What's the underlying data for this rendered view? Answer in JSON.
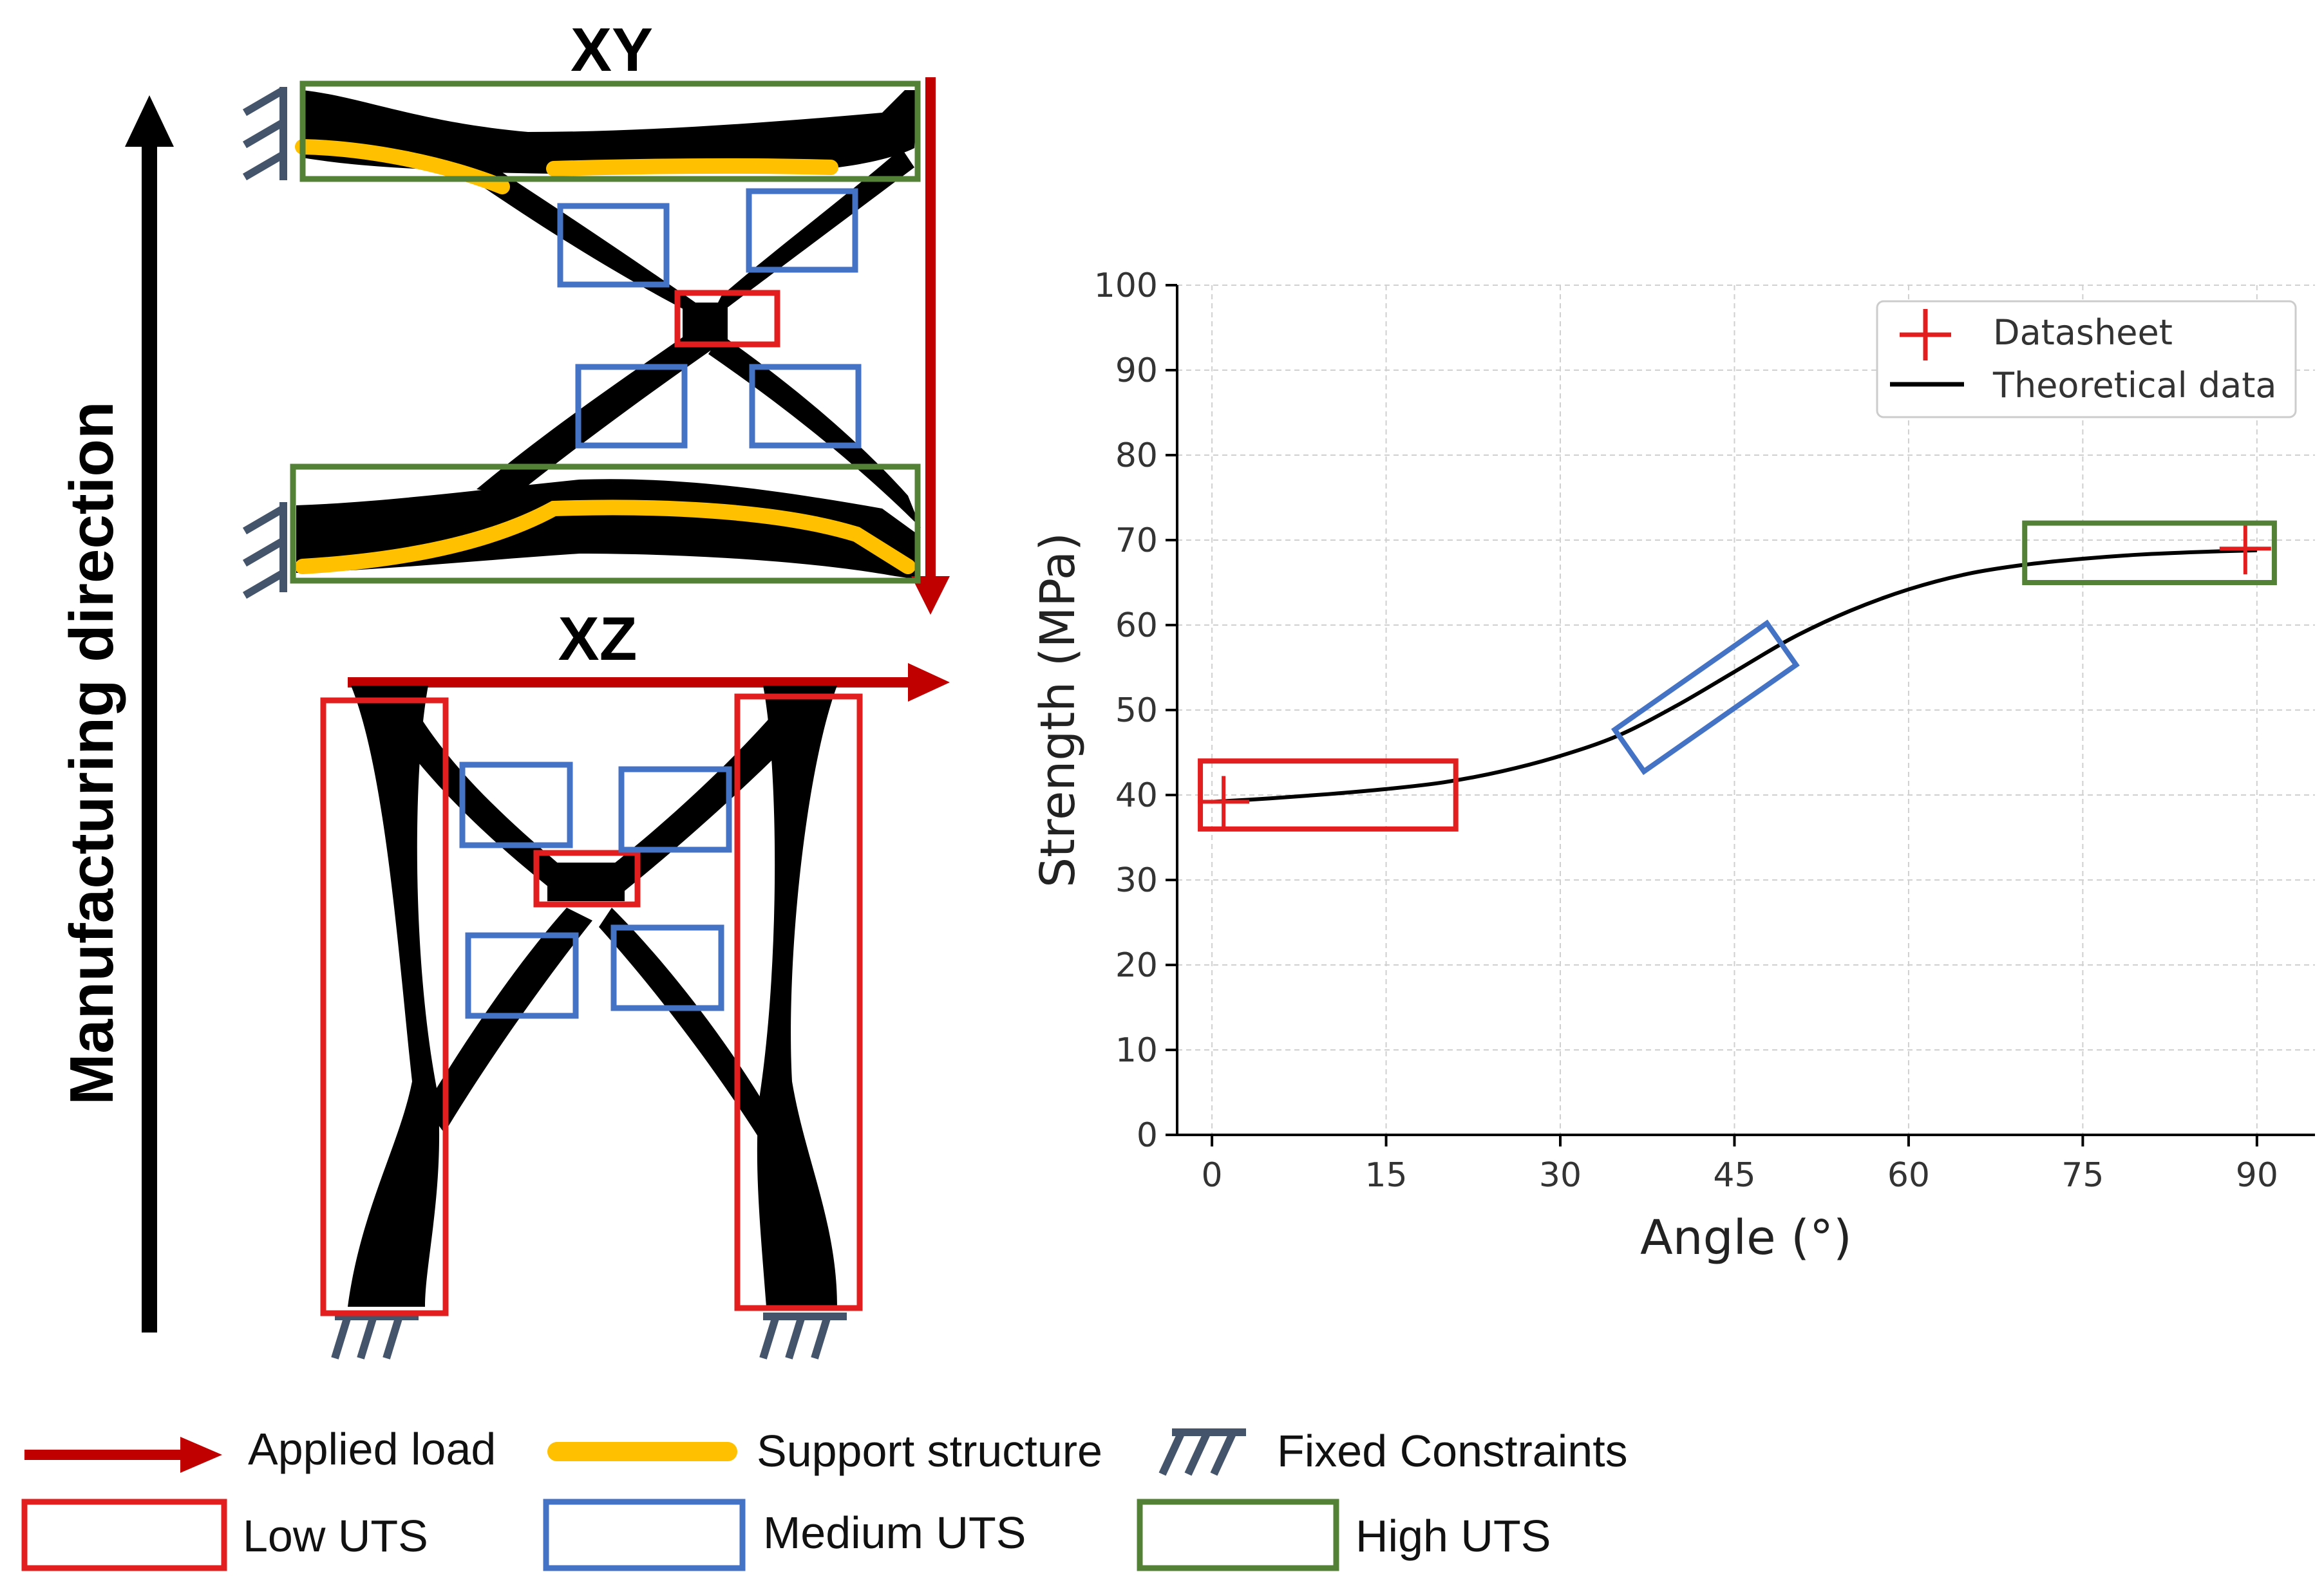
{
  "left_panel": {
    "axis_label": "Manufacturing direction",
    "xy_title": "XY",
    "xz_title": "XZ"
  },
  "legend": {
    "applied_load": "Applied load",
    "support_structure": "Support structure",
    "fixed_constraints": "Fixed Constraints",
    "low_uts": "Low UTS",
    "medium_uts": "Medium UTS",
    "high_uts": "High UTS"
  },
  "colors": {
    "red": "#e31e1e",
    "dark_red": "#c00000",
    "blue": "#4472c4",
    "green": "#538135",
    "yellow": "#ffc000",
    "black": "#000000",
    "constraint": "#44546a"
  },
  "chart_data": {
    "type": "line",
    "xlabel": "Angle (°)",
    "ylabel": "Strength (MPa)",
    "xlim": [
      -3,
      95
    ],
    "ylim": [
      0,
      100
    ],
    "x_ticks": [
      0,
      15,
      30,
      45,
      60,
      75,
      90
    ],
    "y_ticks": [
      0,
      10,
      20,
      30,
      40,
      50,
      60,
      70,
      80,
      90,
      100
    ],
    "grid": true,
    "legend_position": "top-right",
    "series": [
      {
        "name": "Theoretical data",
        "style": "line",
        "color": "#000000",
        "x": [
          0,
          5,
          10,
          15,
          20,
          25,
          30,
          35,
          40,
          45,
          50,
          55,
          60,
          65,
          70,
          75,
          80,
          85,
          90
        ],
        "y": [
          39.2,
          39.6,
          40.1,
          40.7,
          41.5,
          42.8,
          44.6,
          47.0,
          50.5,
          54.5,
          58.5,
          61.7,
          64.2,
          66.0,
          67.1,
          67.8,
          68.3,
          68.6,
          68.8
        ]
      },
      {
        "name": "Datasheet",
        "style": "marker-plus",
        "color": "#e31e1e",
        "x": [
          1,
          89
        ],
        "y": [
          39.2,
          69
        ]
      }
    ],
    "highlight_boxes": [
      {
        "label": "Low UTS",
        "color": "#e31e1e",
        "x_range": [
          -1,
          21
        ],
        "y_range": [
          36,
          44
        ],
        "angle_deg": 0
      },
      {
        "label": "Medium UTS",
        "color": "#4472c4",
        "center": [
          42.5,
          51.5
        ],
        "width_x": 16,
        "height_y": 6,
        "angle_deg": -35
      },
      {
        "label": "High UTS",
        "color": "#538135",
        "x_range": [
          70,
          91.5
        ],
        "y_range": [
          65,
          72
        ],
        "angle_deg": 0
      }
    ]
  }
}
